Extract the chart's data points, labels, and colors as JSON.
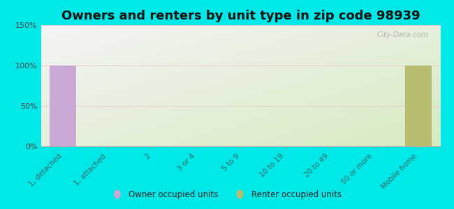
{
  "title": "Owners and renters by unit type in zip code 98939",
  "categories": [
    "1, detached",
    "1, attached",
    "2",
    "3 or 4",
    "5 to 9",
    "10 to 19",
    "20 to 49",
    "50 or more",
    "Mobile home"
  ],
  "owner_values": [
    100,
    0,
    0,
    0,
    0,
    0,
    0,
    0,
    0
  ],
  "renter_values": [
    0,
    0,
    0,
    0,
    0,
    0,
    0,
    0,
    100
  ],
  "owner_color": "#c9a8d4",
  "renter_color": "#b8bc6e",
  "ylim": [
    0,
    150
  ],
  "yticks": [
    0,
    50,
    100,
    150
  ],
  "ytick_labels": [
    "0%",
    "50%",
    "100%",
    "150%"
  ],
  "background_color": "#00e8e8",
  "plot_bg_color_top_left": "#f5f5f5",
  "plot_bg_color_bottom_right": "#e0eecc",
  "legend_owner": "Owner occupied units",
  "legend_renter": "Renter occupied units",
  "title_fontsize": 13,
  "bar_width": 0.6,
  "watermark": "City-Data.com"
}
